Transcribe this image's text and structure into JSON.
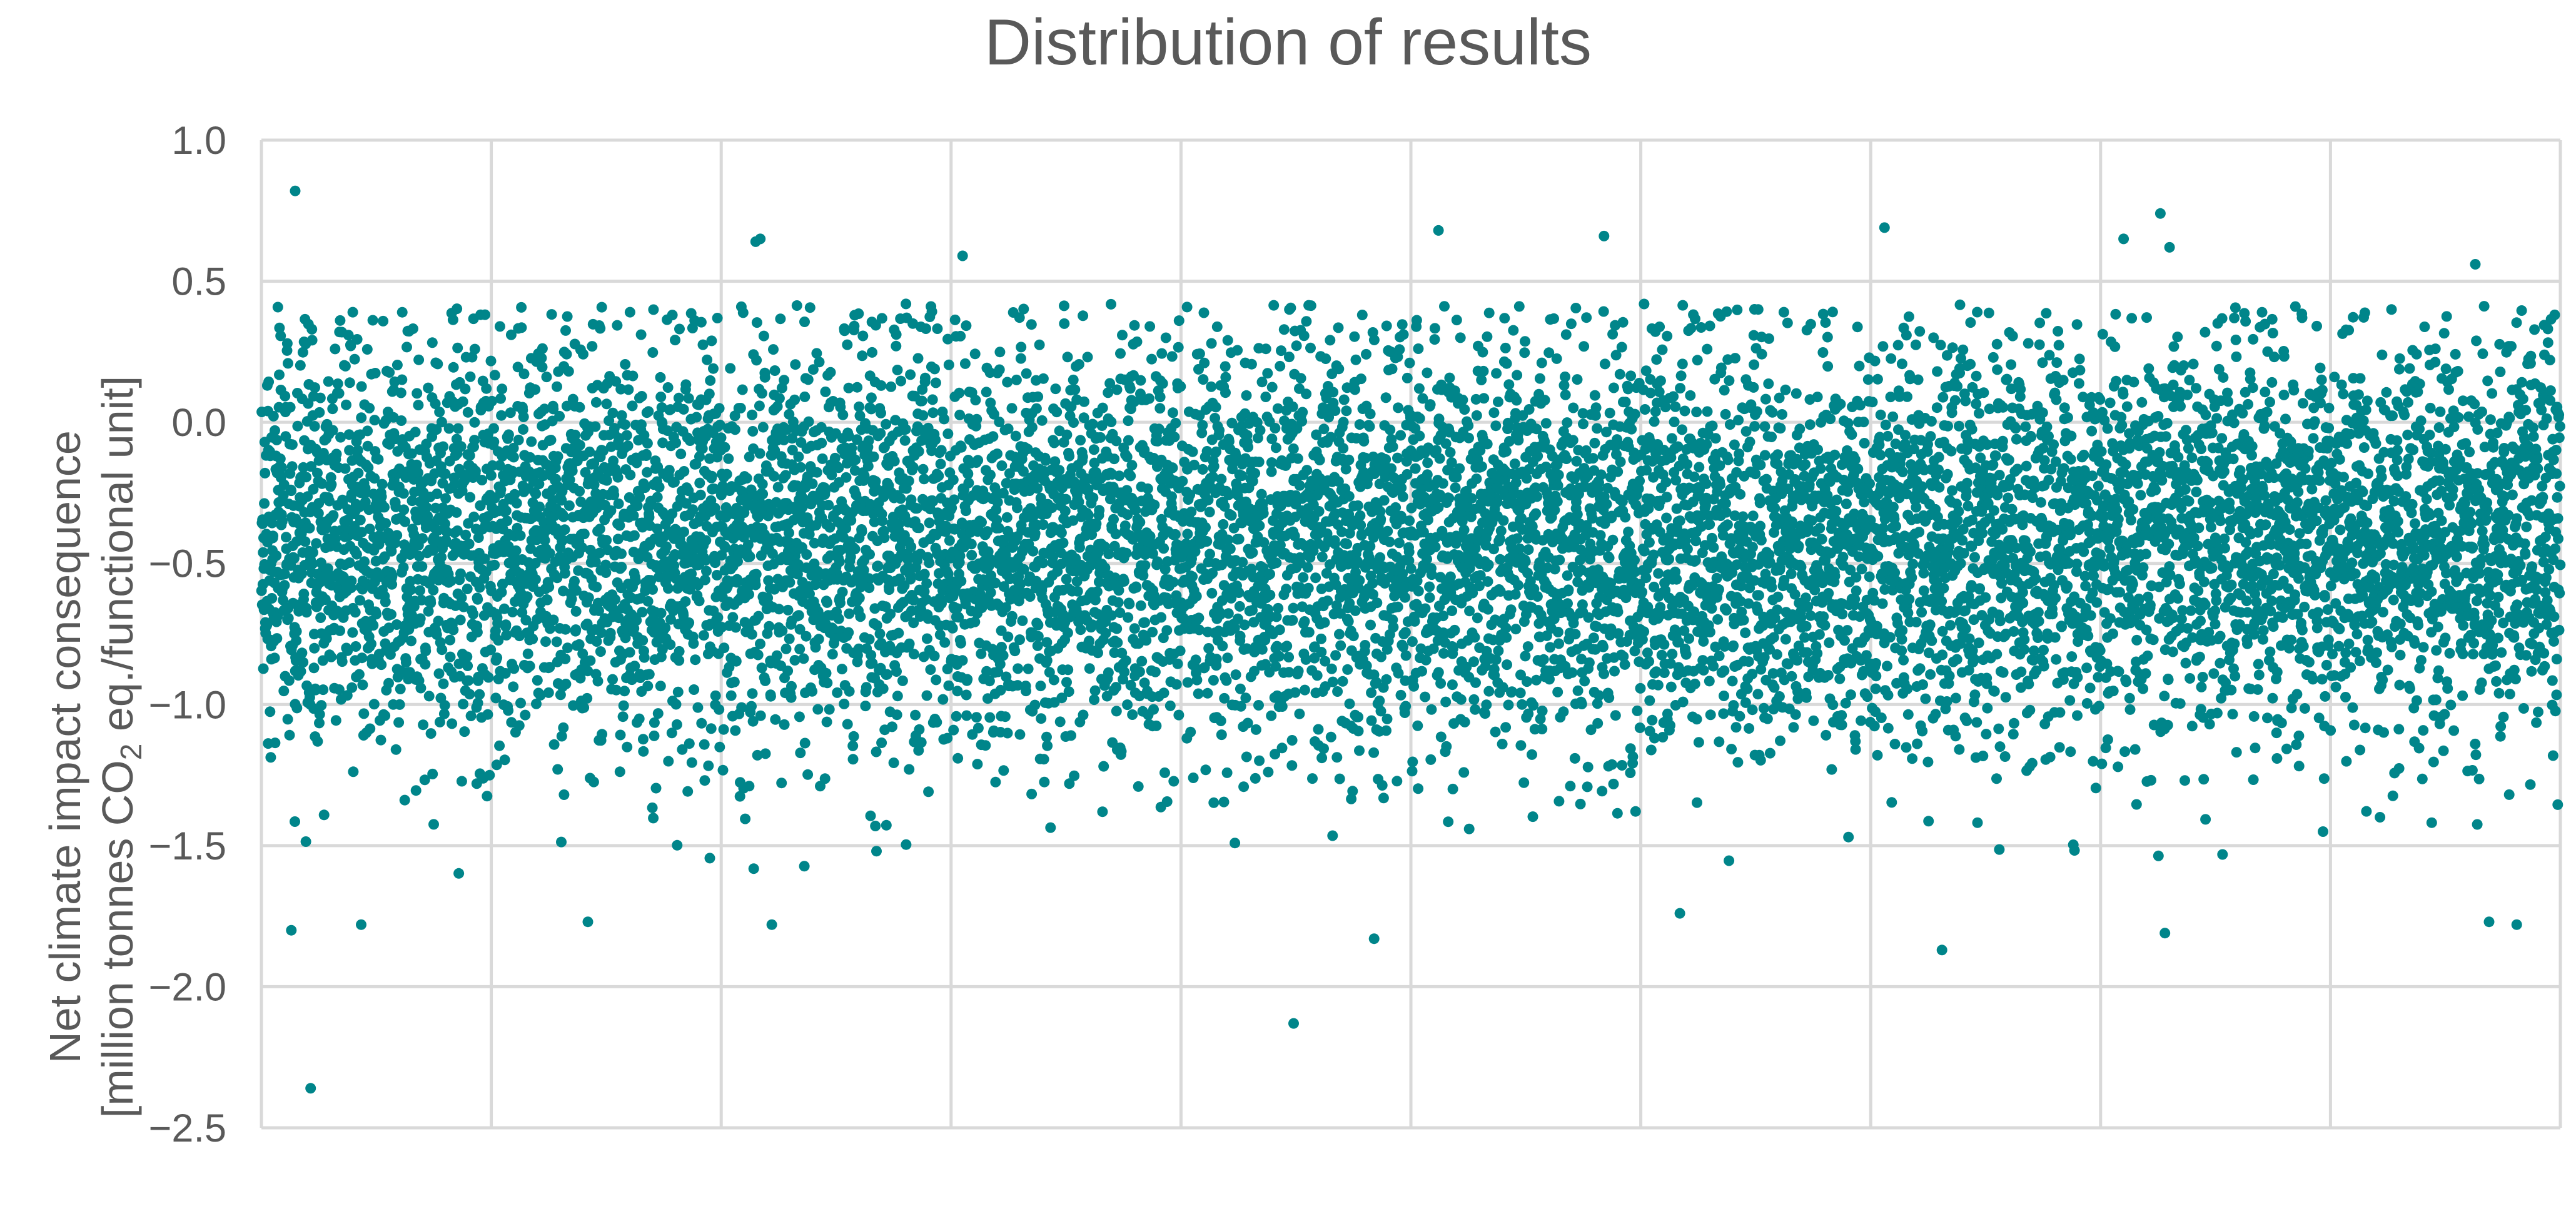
{
  "chart_data": {
    "type": "scatter",
    "title": "Distribution of results",
    "xlabel": "",
    "ylabel": {
      "line1": "Net climate impact consequence",
      "line2_before": "[million tonnes CO",
      "line2_sub": "2",
      "line2_after": " eq./functional unit]"
    },
    "ylim": [
      -2.5,
      1.0
    ],
    "yticks": [
      1.0,
      0.5,
      0.0,
      -0.5,
      -1.0,
      -1.5,
      -2.0,
      -2.5
    ],
    "ytick_labels": [
      "1.0",
      "0.5",
      "0.0",
      "−0.5",
      "−1.0",
      "−1.5",
      "−2.0",
      "−2.5"
    ],
    "xlim": [
      0,
      10000
    ],
    "x_gridlines": [
      1000,
      2000,
      3000,
      4000,
      5000,
      6000,
      7000,
      8000,
      9000
    ],
    "grid": true,
    "marker_color": "#00858a",
    "distribution": {
      "n": 10000,
      "mean": -0.42,
      "std": 0.36,
      "min": -2.36,
      "max": 0.82
    },
    "outliers": [
      {
        "x": 147,
        "y": 0.82
      },
      {
        "x": 214,
        "y": -2.36
      },
      {
        "x": 130,
        "y": -1.8
      },
      {
        "x": 434,
        "y": -1.78
      },
      {
        "x": 2150,
        "y": 0.64
      },
      {
        "x": 2170,
        "y": 0.65
      },
      {
        "x": 3050,
        "y": 0.59
      },
      {
        "x": 4490,
        "y": -2.13
      },
      {
        "x": 5120,
        "y": 0.68
      },
      {
        "x": 5840,
        "y": 0.66
      },
      {
        "x": 7060,
        "y": 0.69
      },
      {
        "x": 8100,
        "y": 0.65
      },
      {
        "x": 8260,
        "y": 0.74
      },
      {
        "x": 8300,
        "y": 0.62
      },
      {
        "x": 7310,
        "y": -1.87
      },
      {
        "x": 4840,
        "y": -1.83
      },
      {
        "x": 8280,
        "y": -1.81
      },
      {
        "x": 9630,
        "y": 0.56
      },
      {
        "x": 9810,
        "y": -1.78
      },
      {
        "x": 9690,
        "y": -1.77
      },
      {
        "x": 1420,
        "y": -1.77
      },
      {
        "x": 2220,
        "y": -1.78
      },
      {
        "x": 6170,
        "y": -1.74
      }
    ]
  }
}
